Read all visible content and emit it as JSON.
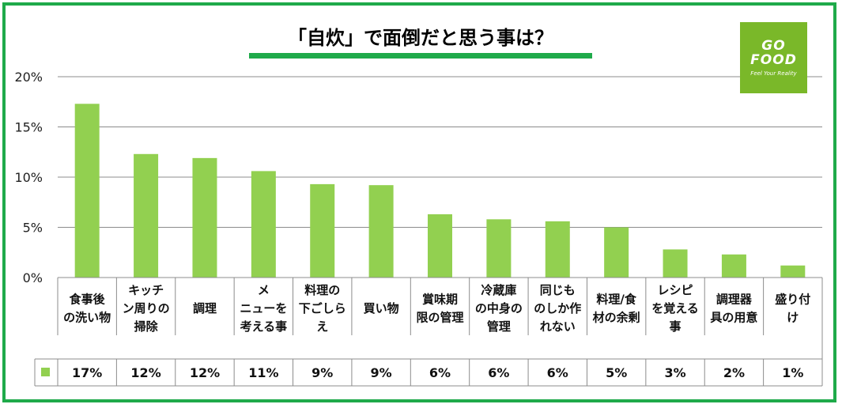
{
  "logo": {
    "line1": "GO",
    "line2": "FOOD",
    "tagline": "Feel Your Reality"
  },
  "colors": {
    "bar": "#92d050",
    "frame": "#1faa4a",
    "underline": "#1faa4a",
    "logo_bg": "#7ab829",
    "grid": "#8c8c8c"
  },
  "chart_data": {
    "type": "bar",
    "title": "「自炊」で面倒だと思う事は？",
    "categories": [
      [
        "食事後",
        "の洗い物"
      ],
      [
        "キッチ",
        "ン周りの",
        "掃除"
      ],
      [
        "調理"
      ],
      [
        "メ",
        "ニューを",
        "考える事"
      ],
      [
        "料理の",
        "下ごしら",
        "え"
      ],
      [
        "買い物"
      ],
      [
        "賞味期",
        "限の管理"
      ],
      [
        "冷蔵庫",
        "の中身の",
        "管理"
      ],
      [
        "同じも",
        "のしか作",
        "れない"
      ],
      [
        "料理/食",
        "材の余剰"
      ],
      [
        "レシピ",
        "を覚える",
        "事"
      ],
      [
        "調理器",
        "具の用意"
      ],
      [
        "盛り付",
        "け"
      ]
    ],
    "values": [
      17.3,
      12.3,
      11.9,
      10.6,
      9.3,
      9.2,
      6.3,
      5.8,
      5.6,
      5.0,
      2.8,
      2.3,
      1.2
    ],
    "value_labels": [
      "17%",
      "12%",
      "12%",
      "11%",
      "9%",
      "9%",
      "6%",
      "6%",
      "6%",
      "5%",
      "3%",
      "2%",
      "1%"
    ],
    "yticks": [
      "0%",
      "5%",
      "10%",
      "15%",
      "20%"
    ],
    "ylim": [
      0,
      20
    ],
    "grid": true,
    "legend": "data-table"
  }
}
